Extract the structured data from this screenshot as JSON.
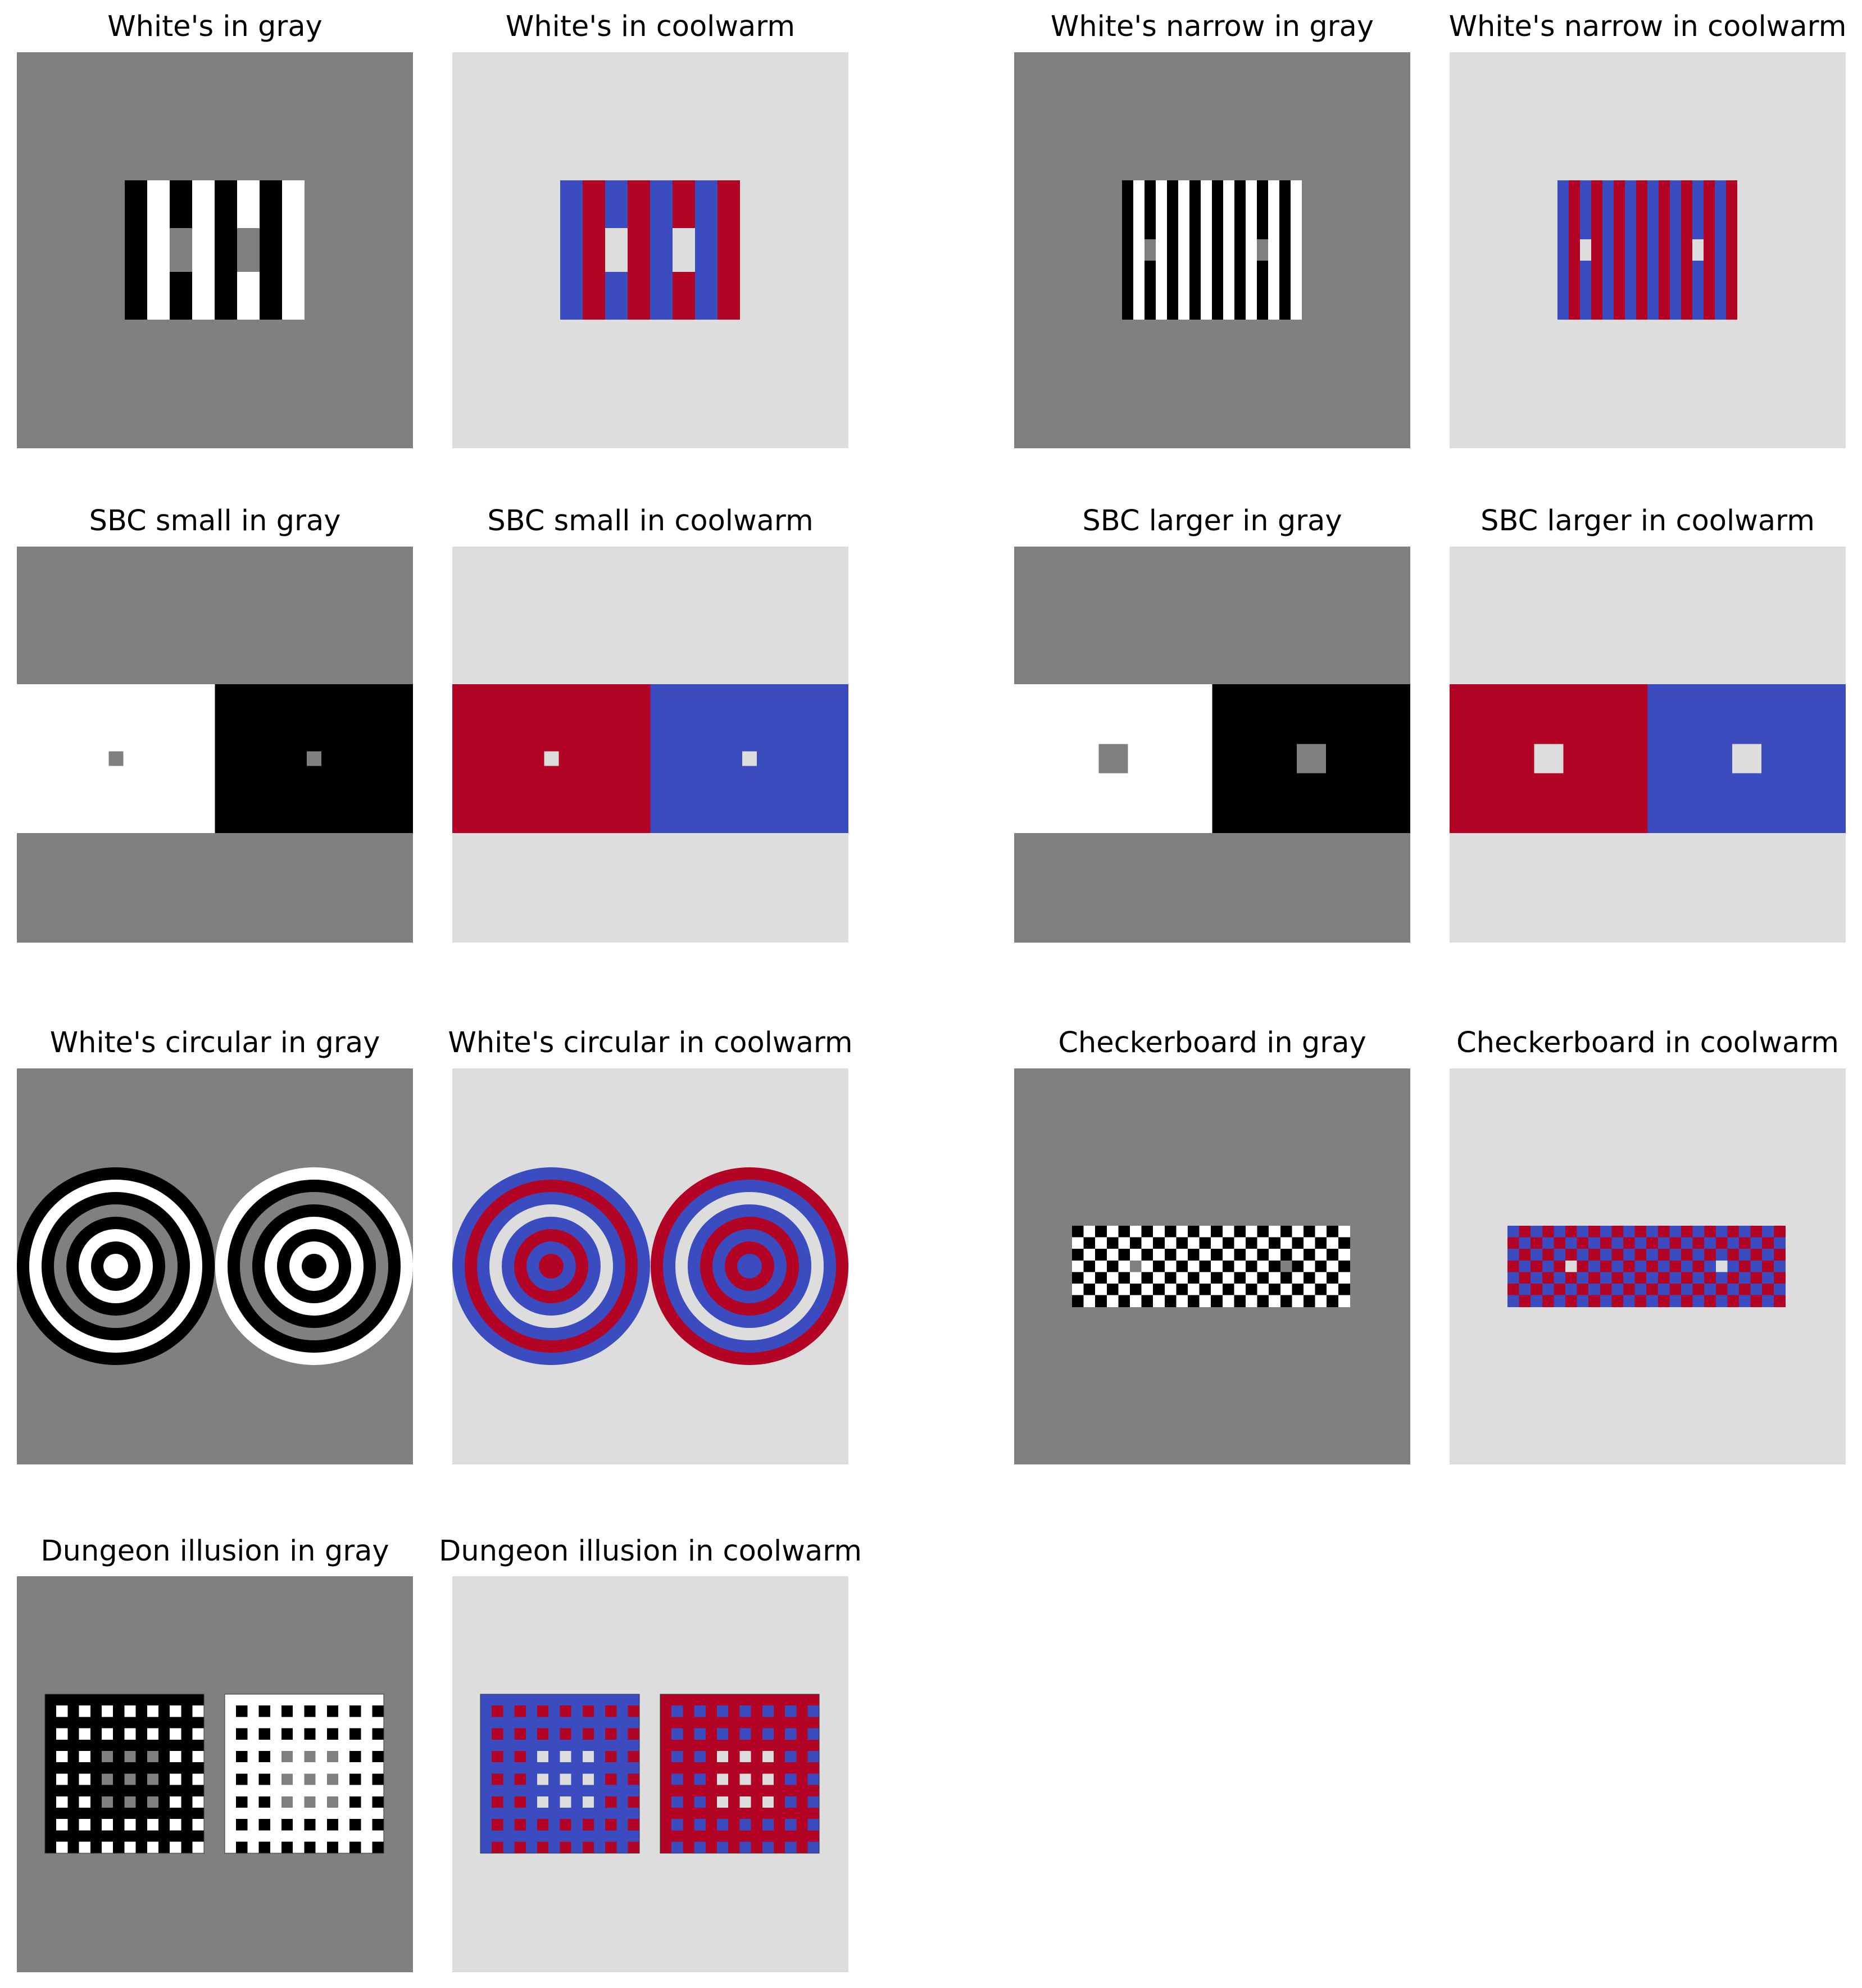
{
  "colors": {
    "gray_bg": "#808080",
    "coolwarm_bg": "#dddddd",
    "black": "#000000",
    "white": "#ffffff",
    "cool_blue": "#3b4cc0",
    "warm_red": "#b40426"
  },
  "panels": [
    {
      "id": "whites-gray",
      "title": "White's in gray",
      "kind": "whites",
      "palette": "gray"
    },
    {
      "id": "whites-coolwarm",
      "title": "White's in coolwarm",
      "kind": "whites",
      "palette": "coolwarm"
    },
    {
      "id": "whites-narrow-gray",
      "title": "White's narrow in gray",
      "kind": "whites-narrow",
      "palette": "gray"
    },
    {
      "id": "whites-narrow-coolwarm",
      "title": "White's narrow in coolwarm",
      "kind": "whites-narrow",
      "palette": "coolwarm"
    },
    {
      "id": "sbc-small-gray",
      "title": "SBC small in gray",
      "kind": "sbc-small",
      "palette": "gray"
    },
    {
      "id": "sbc-small-coolwarm",
      "title": "SBC small in coolwarm",
      "kind": "sbc-small",
      "palette": "coolwarm"
    },
    {
      "id": "sbc-larger-gray",
      "title": "SBC larger in gray",
      "kind": "sbc-larger",
      "palette": "gray"
    },
    {
      "id": "sbc-larger-coolwarm",
      "title": "SBC larger in coolwarm",
      "kind": "sbc-larger",
      "palette": "coolwarm"
    },
    {
      "id": "whites-circular-gray",
      "title": "White's circular in gray",
      "kind": "circular",
      "palette": "gray"
    },
    {
      "id": "whites-circular-coolwarm",
      "title": "White's circular in coolwarm",
      "kind": "circular",
      "palette": "coolwarm"
    },
    {
      "id": "checkerboard-gray",
      "title": "Checkerboard in gray",
      "kind": "checkerboard",
      "palette": "gray"
    },
    {
      "id": "checkerboard-coolwarm",
      "title": "Checkerboard in coolwarm",
      "kind": "checkerboard",
      "palette": "coolwarm"
    },
    {
      "id": "dungeon-gray",
      "title": "Dungeon illusion in gray",
      "kind": "dungeon",
      "palette": "gray"
    },
    {
      "id": "dungeon-coolwarm",
      "title": "Dungeon illusion in coolwarm",
      "kind": "dungeon",
      "palette": "coolwarm"
    }
  ]
}
